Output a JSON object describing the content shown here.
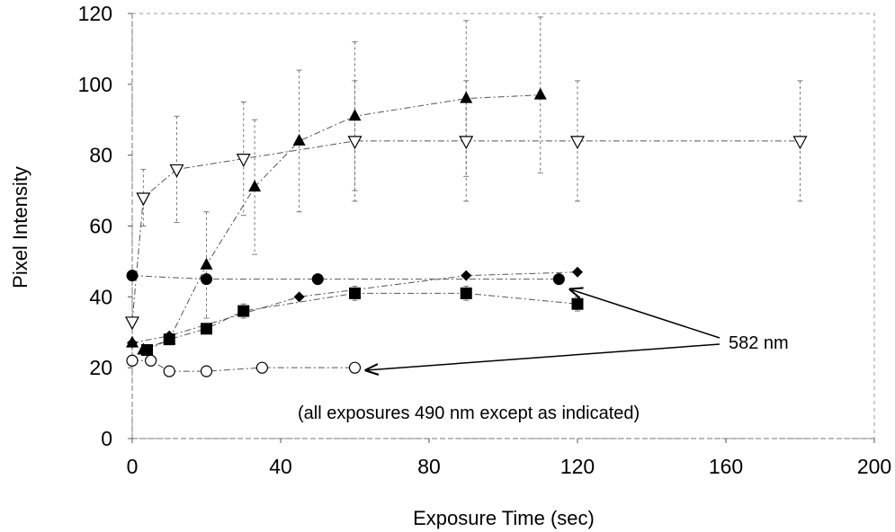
{
  "chart_data": {
    "type": "scatter",
    "title": "",
    "xlabel": "Exposure Time (sec)",
    "ylabel": "Pixel Intensity",
    "xlim": [
      0,
      200
    ],
    "ylim": [
      0,
      120
    ],
    "xticks": [
      "0",
      "40",
      "80",
      "120",
      "160",
      "200"
    ],
    "yticks": [
      "0",
      "20",
      "40",
      "60",
      "80",
      "100",
      "120"
    ],
    "grid": false,
    "legend": "none",
    "series": [
      {
        "marker": "triangle-up-filled",
        "x": [
          0,
          3,
          10,
          20,
          33,
          45,
          60,
          90,
          110
        ],
        "y": [
          27,
          25,
          28,
          49,
          71,
          84,
          91,
          96,
          97
        ],
        "err": [
          0,
          0,
          0,
          15,
          19,
          20,
          21,
          22,
          22
        ]
      },
      {
        "marker": "triangle-down-open",
        "x": [
          0,
          3,
          12,
          30,
          60,
          90,
          120,
          180
        ],
        "y": [
          33,
          68,
          76,
          79,
          84,
          84,
          84,
          84
        ],
        "err": [
          0,
          8,
          15,
          16,
          17,
          17,
          17,
          17
        ]
      },
      {
        "marker": "circle-filled",
        "x": [
          0,
          20,
          50,
          115
        ],
        "y": [
          46,
          45,
          45,
          45
        ],
        "err": [
          0,
          0,
          0,
          0
        ]
      },
      {
        "marker": "diamond-filled",
        "x": [
          0,
          10,
          45,
          90,
          120
        ],
        "y": [
          27,
          29,
          40,
          46,
          47
        ],
        "err": [
          0,
          0,
          0,
          0,
          0
        ]
      },
      {
        "marker": "square-filled",
        "x": [
          4,
          10,
          20,
          30,
          60,
          90,
          120
        ],
        "y": [
          25,
          28,
          31,
          36,
          41,
          41,
          38
        ],
        "err": [
          0,
          0,
          0,
          2,
          2,
          2,
          2
        ]
      },
      {
        "marker": "circle-open",
        "x": [
          0,
          5,
          10,
          20,
          35,
          60
        ],
        "y": [
          22,
          22,
          19,
          19,
          20,
          20
        ],
        "err": [
          0,
          0,
          0,
          0,
          0,
          0
        ]
      }
    ],
    "annotations": [
      {
        "text": "582 nm",
        "arrows_to": [
          [
            118,
            43
          ],
          [
            65,
            20
          ]
        ]
      },
      {
        "text": "(all exposures 490 nm except as indicated)"
      }
    ],
    "colors": {
      "marker": "#000000",
      "line": "#555555",
      "frame": "#888888"
    }
  }
}
